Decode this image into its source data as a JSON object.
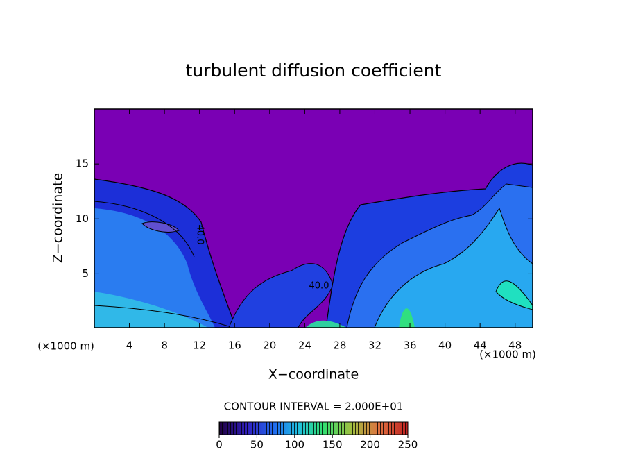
{
  "chart_data": {
    "type": "contour",
    "title": "turbulent diffusion coefficient",
    "xlabel": "X−coordinate",
    "ylabel": "Z−coordinate",
    "x_unit": "(×1000 m)",
    "z_unit": "(×1000 m)",
    "xlim": [
      0,
      50
    ],
    "ylim": [
      0.1,
      20
    ],
    "xticks": [
      4,
      8,
      12,
      16,
      20,
      24,
      28,
      32,
      36,
      40,
      44,
      48
    ],
    "yticks": [
      5,
      10,
      15
    ],
    "contour_labels": [
      {
        "value": 40,
        "label": "40.0"
      },
      {
        "value": 40,
        "label": "40.0"
      }
    ],
    "contour_interval": "CONTOUR INTERVAL = 2.000E+01",
    "colorbar": {
      "lim": [
        0,
        250
      ],
      "ticks": [
        0,
        50,
        100,
        150,
        200,
        250
      ]
    }
  }
}
